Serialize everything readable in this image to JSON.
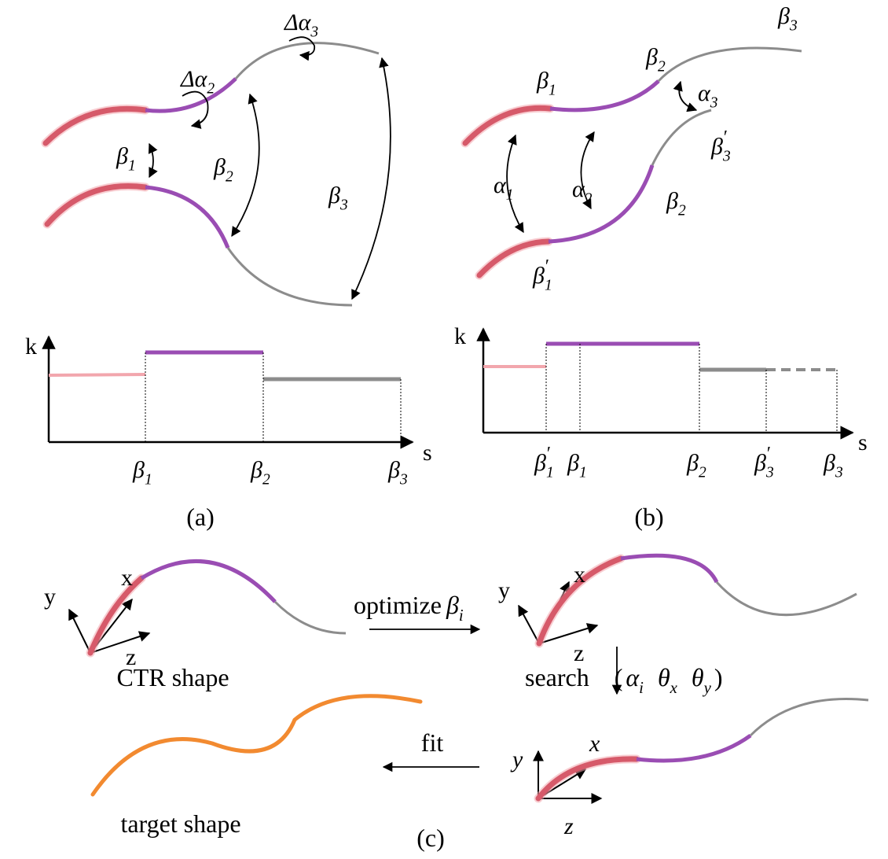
{
  "panel_a": {
    "shape_labels": [
      {
        "base": "Δα",
        "sub": "3"
      },
      {
        "base": "Δα",
        "sub": "2"
      },
      {
        "base": "β",
        "sub": "1"
      },
      {
        "base": "β",
        "sub": "2"
      },
      {
        "base": "β",
        "sub": "3"
      }
    ],
    "k_axis": "k",
    "s_axis": "s",
    "s_ticks": [
      {
        "base": "β",
        "sub": "1"
      },
      {
        "base": "β",
        "sub": "2"
      },
      {
        "base": "β",
        "sub": "3"
      }
    ],
    "caption": "(a)"
  },
  "panel_b": {
    "shape_labels": [
      {
        "base": "β",
        "sub": "3"
      },
      {
        "base": "β",
        "sub": "1"
      },
      {
        "base": "β",
        "sub": "2"
      },
      {
        "base": "α",
        "sub": "3"
      },
      {
        "base": "β",
        "sub": "3",
        "prime": "′"
      },
      {
        "base": "α",
        "sub": "1"
      },
      {
        "base": "α",
        "sub": "2"
      },
      {
        "base": "β",
        "sub": "2"
      },
      {
        "base": "β",
        "sub": "1",
        "prime": "′"
      }
    ],
    "k_axis": "k",
    "s_axis": "s",
    "s_ticks": [
      {
        "base": "β",
        "sub": "1",
        "prime": "′"
      },
      {
        "base": "β",
        "sub": "1"
      },
      {
        "base": "β",
        "sub": "2"
      },
      {
        "base": "β",
        "sub": "3",
        "prime": "′"
      },
      {
        "base": "β",
        "sub": "3"
      }
    ],
    "caption": "(b)"
  },
  "panel_c": {
    "frames": [
      {
        "y": "y",
        "x": "x",
        "z": "z"
      },
      {
        "y": "y",
        "x": "x",
        "z": "z"
      },
      {
        "y": "y",
        "x": "x",
        "z": "z"
      }
    ],
    "ctr_label": "CTR shape",
    "optimize": {
      "word": "optimize",
      "symbol": {
        "base": "β",
        "sub": "i"
      }
    },
    "search": {
      "word": "search",
      "open": "(",
      "terms": [
        {
          "base": "α",
          "sub": "i"
        },
        {
          "base": "θ",
          "sub": "x"
        },
        {
          "base": "θ",
          "sub": "y"
        }
      ],
      "close": ")"
    },
    "fit": "fit",
    "target_label": "target shape",
    "caption": "(c)"
  }
}
